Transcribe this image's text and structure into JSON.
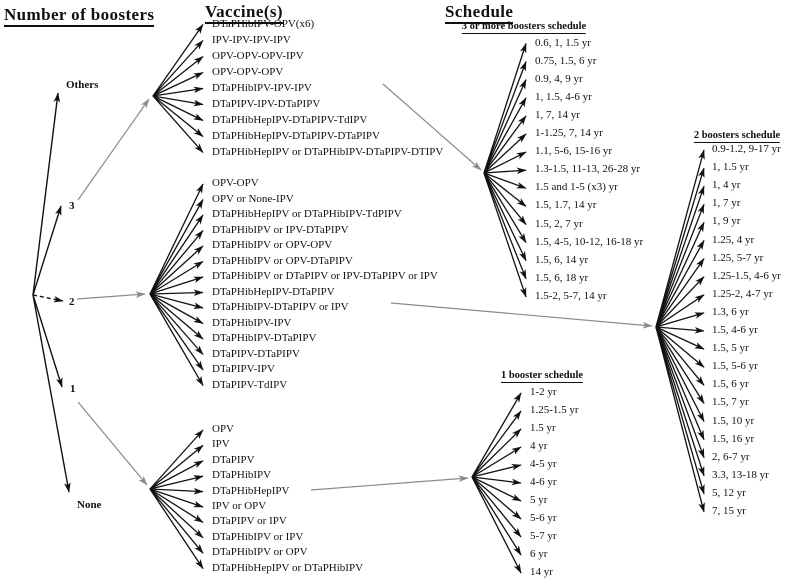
{
  "headers": {
    "number_of_boosters": "Number of boosters",
    "vaccines": "Vaccine(s)",
    "schedule": "Schedule"
  },
  "booster_nodes": [
    {
      "label": "Others"
    },
    {
      "label": "3"
    },
    {
      "label": "2"
    },
    {
      "label": "1"
    },
    {
      "label": "None"
    }
  ],
  "vaccine_groups": [
    {
      "id": "vaccines-3-or-more-boosters",
      "booster": "3",
      "items": [
        "DTaPHibIPV-OPV(x6)",
        "IPV-IPV-IPV-IPV",
        "OPV-OPV-OPV-IPV",
        "OPV-OPV-OPV",
        "DTaPHibIPV-IPV-IPV",
        "DTaPIPV-IPV-DTaPIPV",
        "DTaPHibHepIPV-DTaPIPV-TdIPV",
        "DTaPHibHepIPV-DTaPIPV-DTaPIPV",
        "DTaPHibHepIPV or DTaPHibIPV-DTaPIPV-DTIPV"
      ]
    },
    {
      "id": "vaccines-2-boosters",
      "booster": "2",
      "items": [
        "OPV-OPV",
        "OPV or None-IPV",
        "DTaPHibHepIPV or DTaPHibIPV-TdPIPV",
        "DTaPHibIPV or IPV-DTaPIPV",
        "DTaPHibIPV or OPV-OPV",
        "DTaPHibIPV or OPV-DTaPIPV",
        "DTaPHibIPV or DTaPIPV or IPV-DTaPIPV or IPV",
        "DTaPHibHepIPV-DTaPIPV",
        "DTaPHibIPV-DTaPIPV or IPV",
        "DTaPHibIPV-IPV",
        "DTaPHibIPV-DTaPIPV",
        "DTaPIPV-DTaPIPV",
        "DTaPIPV-IPV",
        "DTaPIPV-TdIPV"
      ]
    },
    {
      "id": "vaccines-1-booster",
      "booster": "1",
      "items": [
        "OPV",
        "IPV",
        "DTaPIPV",
        "DTaPHibIPV",
        "DTaPHibHepIPV",
        "IPV or OPV",
        "DTaPIPV or IPV",
        "DTaPHibIPV or IPV",
        "DTaPHibIPV or OPV",
        "DTaPHibHepIPV or DTaPHibIPV"
      ]
    }
  ],
  "schedule_groups": [
    {
      "id": "schedule-3-or-more-boosters",
      "title": "3 or more boosters schedule",
      "items": [
        "0.6, 1, 1.5 yr",
        "0.75, 1.5, 6 yr",
        "0.9, 4, 9 yr",
        "1, 1.5, 4-6 yr",
        "1, 7, 14 yr",
        "1-1.25, 7, 14 yr",
        "1.1, 5-6, 15-16 yr",
        "1.3-1.5, 11-13, 26-28 yr",
        "1.5 and 1-5 (x3) yr",
        "1.5, 1.7, 14 yr",
        "1.5, 2, 7 yr",
        "1.5, 4-5, 10-12, 16-18 yr",
        "1.5, 6, 14 yr",
        "1.5, 6, 18 yr",
        "1.5-2, 5-7, 14 yr"
      ]
    },
    {
      "id": "schedule-2-boosters",
      "title": "2 boosters schedule",
      "items": [
        "0.9-1.2, 9-17 yr",
        "1, 1.5 yr",
        "1, 4 yr",
        "1, 7 yr",
        "1, 9 yr",
        "1.25, 4 yr",
        "1.25, 5-7 yr",
        "1.25-1.5, 4-6 yr",
        "1.25-2, 4-7 yr",
        "1.3, 6 yr",
        "1.5, 4-6 yr",
        "1.5, 5 yr",
        "1.5, 5-6 yr",
        "1.5, 6 yr",
        "1.5, 7 yr",
        "1.5, 10 yr",
        "1.5, 16 yr",
        "2, 6-7 yr",
        "3.3, 13-18 yr",
        "5, 12 yr",
        "7, 15 yr"
      ]
    },
    {
      "id": "schedule-1-booster",
      "title": "1 booster schedule",
      "items": [
        "1-2 yr",
        "1.25-1.5 yr",
        "1.5 yr",
        "4 yr",
        "4-5 yr",
        "4-6 yr",
        "5 yr",
        "5-6 yr",
        "5-7 yr",
        "6 yr",
        "14 yr"
      ]
    }
  ],
  "colors": {
    "arrow_black": "#111111",
    "arrow_gray": "#8a8a8a",
    "text": "#111111",
    "background": "#ffffff"
  }
}
